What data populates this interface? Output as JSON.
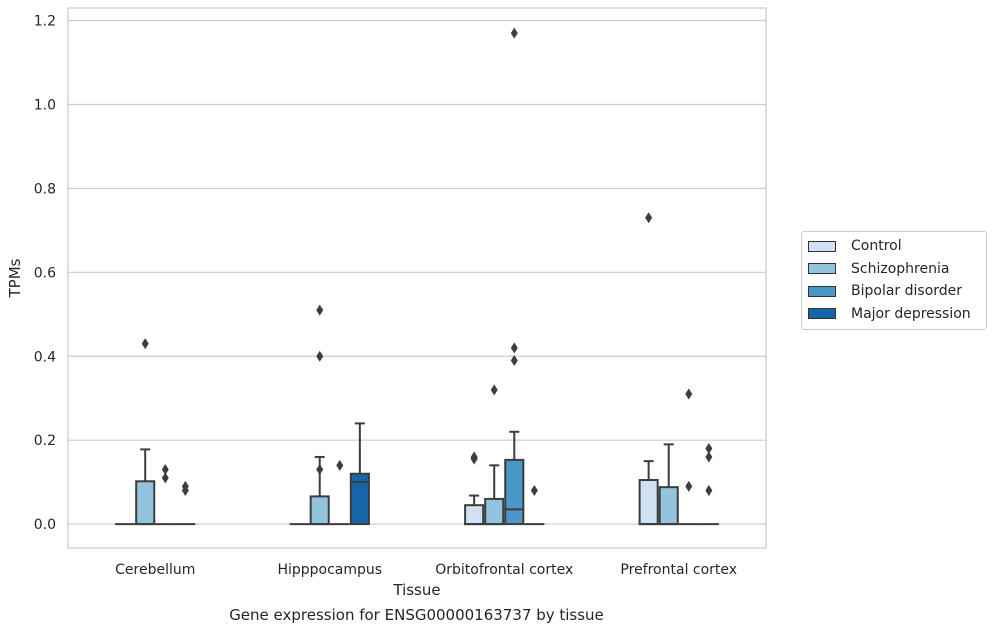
{
  "chart_data": {
    "type": "boxplot",
    "title": "",
    "caption": "Gene expression for ENSG00000163737 by tissue",
    "xlabel": "Tissue",
    "ylabel": "TPMs",
    "ylim": [
      -0.057,
      1.23
    ],
    "yticks": [
      "0.0",
      "0.2",
      "0.4",
      "0.6",
      "0.8",
      "1.0",
      "1.2"
    ],
    "categories": [
      "Cerebellum",
      "Hipppocampus",
      "Orbitofrontal cortex",
      "Prefrontal cortex"
    ],
    "grid": "horizontal",
    "legend_position": "outside-right",
    "series": [
      {
        "name": "Control",
        "color": "#cfe1f2",
        "boxes": [
          {
            "q1": 0,
            "median": 0,
            "q3": 0,
            "whislo": 0,
            "whishi": 0,
            "fliers": []
          },
          {
            "q1": 0,
            "median": 0,
            "q3": 0,
            "whislo": 0,
            "whishi": 0,
            "fliers": []
          },
          {
            "q1": 0,
            "median": 0,
            "q3": 0.045,
            "whislo": 0,
            "whishi": 0.068,
            "fliers": [
              0.16,
              0.155
            ]
          },
          {
            "q1": 0,
            "median": 0,
            "q3": 0.105,
            "whislo": 0,
            "whishi": 0.15,
            "fliers": [
              0.73
            ]
          }
        ]
      },
      {
        "name": "Schizophrenia",
        "color": "#93c4de",
        "boxes": [
          {
            "q1": 0,
            "median": 0,
            "q3": 0.102,
            "whislo": 0,
            "whishi": 0.178,
            "fliers": [
              0.43
            ]
          },
          {
            "q1": 0,
            "median": 0,
            "q3": 0.066,
            "whislo": 0,
            "whishi": 0.16,
            "fliers": [
              0.13,
              0.4,
              0.51
            ]
          },
          {
            "q1": 0,
            "median": 0,
            "q3": 0.06,
            "whislo": 0,
            "whishi": 0.14,
            "fliers": [
              0.32
            ]
          },
          {
            "q1": 0,
            "median": 0,
            "q3": 0.088,
            "whislo": 0,
            "whishi": 0.19,
            "fliers": []
          }
        ]
      },
      {
        "name": "Bipolar disorder",
        "color": "#4a98c9",
        "boxes": [
          {
            "q1": 0,
            "median": 0,
            "q3": 0,
            "whislo": 0,
            "whishi": 0,
            "fliers": [
              0.11,
              0.13
            ]
          },
          {
            "q1": 0,
            "median": 0,
            "q3": 0,
            "whislo": 0,
            "whishi": 0,
            "fliers": [
              0.14
            ]
          },
          {
            "q1": 0,
            "median": 0.035,
            "q3": 0.153,
            "whislo": 0,
            "whishi": 0.22,
            "fliers": [
              0.39,
              0.42,
              1.17
            ]
          },
          {
            "q1": 0,
            "median": 0,
            "q3": 0,
            "whislo": 0,
            "whishi": 0,
            "fliers": [
              0.09,
              0.31
            ]
          }
        ]
      },
      {
        "name": "Major depression",
        "color": "#1764ab",
        "boxes": [
          {
            "q1": 0,
            "median": 0,
            "q3": 0,
            "whislo": 0,
            "whishi": 0,
            "fliers": [
              0.08,
              0.09
            ]
          },
          {
            "q1": 0,
            "median": 0.1,
            "q3": 0.12,
            "whislo": 0,
            "whishi": 0.24,
            "fliers": []
          },
          {
            "q1": 0,
            "median": 0,
            "q3": 0,
            "whislo": 0,
            "whishi": 0,
            "fliers": [
              0.08
            ]
          },
          {
            "q1": 0,
            "median": 0,
            "q3": 0,
            "whislo": 0,
            "whishi": 0,
            "fliers": [
              0.08,
              0.16,
              0.18
            ]
          }
        ]
      }
    ]
  }
}
